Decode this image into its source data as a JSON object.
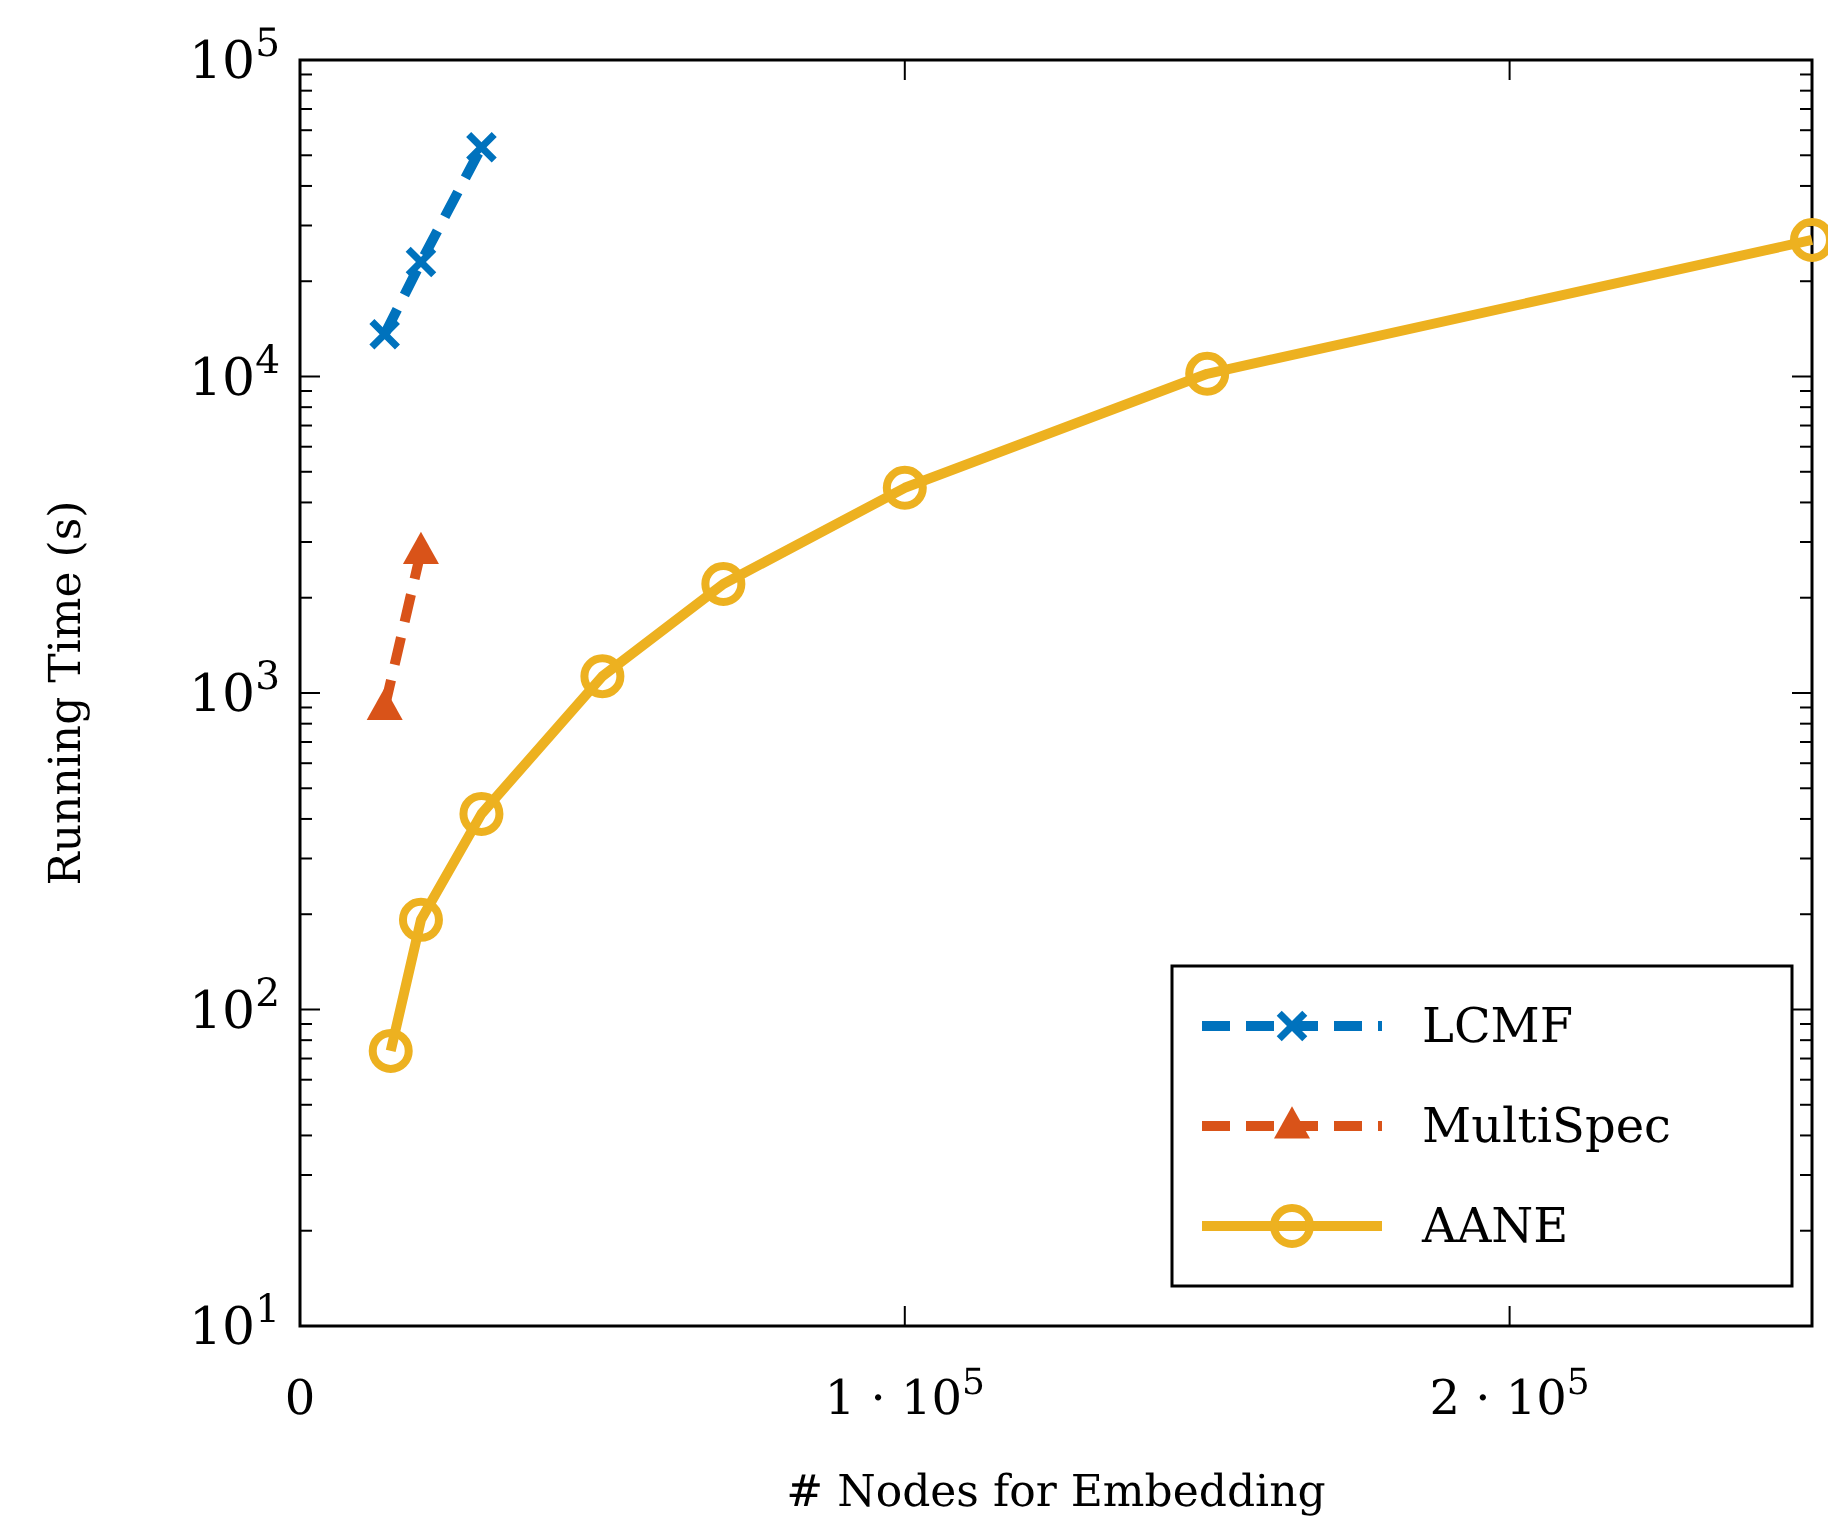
{
  "chart_data": {
    "type": "line",
    "xlabel": "# Nodes for Embedding",
    "ylabel": "Running Time (s)",
    "log": "y",
    "xlim": [
      0,
      250000
    ],
    "ylim": [
      10,
      100000
    ],
    "xticks": [
      0,
      {
        "value": 100000,
        "label": "1 · 10$^{5}$"
      },
      {
        "value": 200000,
        "label": "2 · 10$^{5}$"
      }
    ],
    "yticks": [
      {
        "value": 10,
        "label": "10$^{1}$"
      },
      {
        "value": 100,
        "label": "10$^{2}$"
      },
      {
        "value": 1000,
        "label": "10$^{3}$"
      },
      {
        "value": 10000,
        "label": "10$^{4}$"
      },
      {
        "value": 100000,
        "label": "10$^{5}$"
      }
    ],
    "grid": false,
    "legend": "bottom right",
    "series": [
      {
        "name": "LCMF",
        "color": "#0072bd",
        "marker": "cross",
        "line_style": "dashed",
        "x": [
          14000,
          20000,
          30000
        ],
        "values": [
          13600,
          23000,
          53000
        ]
      },
      {
        "name": "MultiSpec",
        "color": "#d95319",
        "marker": "triangle",
        "line_style": "dashed",
        "x": [
          14000,
          20000
        ],
        "values": [
          900,
          2800
        ]
      },
      {
        "name": "AANE",
        "color": "#edb120",
        "marker": "circle",
        "line_style": "solid",
        "x": [
          15000,
          20000,
          30000,
          50000,
          70000,
          100000,
          150000,
          250000
        ],
        "values": [
          74,
          192,
          415,
          1130,
          2210,
          4450,
          10200,
          27000
        ]
      }
    ]
  }
}
